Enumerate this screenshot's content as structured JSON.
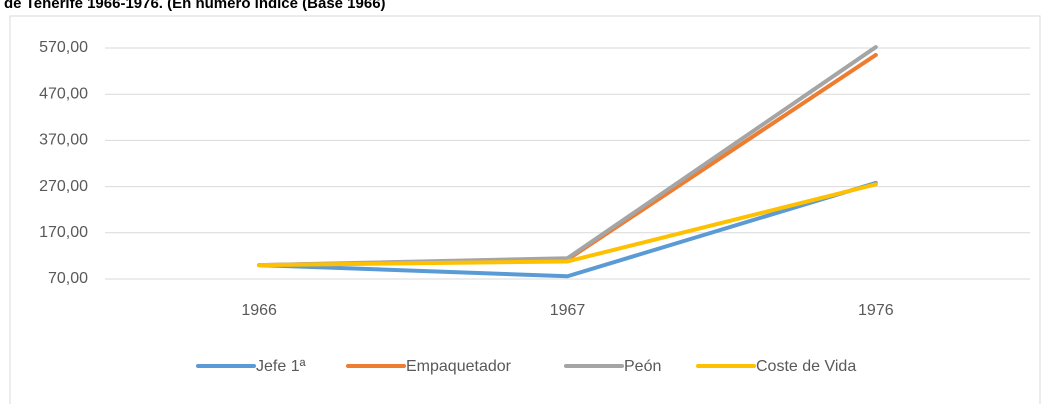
{
  "chart_data": {
    "type": "line",
    "title": "de Tenerife 1966-1976. (En número índice (Base 1966)",
    "categories": [
      "1966",
      "1967",
      "1976"
    ],
    "series": [
      {
        "name": "Jefe 1ª",
        "color": "#5b9bd5",
        "values": [
          100,
          76,
          278
        ]
      },
      {
        "name": "Empaquetador",
        "color": "#ed7d31",
        "values": [
          100,
          112,
          555
        ]
      },
      {
        "name": "Peón",
        "color": "#a5a5a5",
        "values": [
          100,
          115,
          572
        ]
      },
      {
        "name": "Coste de Vida",
        "color": "#ffc000",
        "values": [
          100,
          108,
          275
        ]
      }
    ],
    "ylim": [
      70,
      570
    ],
    "yticks": [
      {
        "value": 70,
        "label": "70,00"
      },
      {
        "value": 170,
        "label": "170,00"
      },
      {
        "value": 270,
        "label": "270,00"
      },
      {
        "value": 370,
        "label": "370,00"
      },
      {
        "value": 470,
        "label": "470,00"
      },
      {
        "value": 570,
        "label": "570,00"
      }
    ],
    "grid": true,
    "legend": "bottom"
  }
}
